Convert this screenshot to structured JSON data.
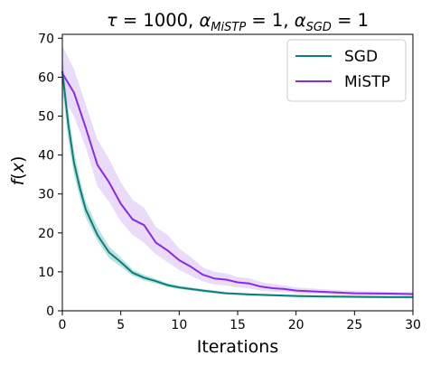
{
  "chart_data": {
    "type": "line",
    "title_parts": [
      {
        "t": "τ",
        "it": true
      },
      {
        "t": " = 1000, "
      },
      {
        "t": "α",
        "it": true
      },
      {
        "t": "MiSTP",
        "it": true,
        "sub": true
      },
      {
        "t": " = 1, "
      },
      {
        "t": "α",
        "it": true
      },
      {
        "t": "SGD",
        "it": true,
        "sub": true
      },
      {
        "t": " = 1"
      }
    ],
    "xlabel": "Iterations",
    "ylabel": "f(x)",
    "xlim": [
      0,
      30
    ],
    "ylim": [
      0,
      71
    ],
    "xticks": [
      0,
      5,
      10,
      15,
      20,
      25,
      30
    ],
    "yticks": [
      0,
      10,
      20,
      30,
      40,
      50,
      60,
      70
    ],
    "grid": false,
    "legend_position": "top-right",
    "series": [
      {
        "name": "SGD",
        "color": "#0a7f7a",
        "band_color": "#7fcac6",
        "x": [
          0,
          0.5,
          1,
          1.5,
          2,
          3,
          4,
          5,
          6,
          7,
          8,
          9,
          10,
          12,
          14,
          16,
          18,
          20,
          22,
          25,
          28,
          30
        ],
        "y": [
          61.5,
          48,
          38,
          31.5,
          26,
          19.5,
          15,
          12.5,
          9.8,
          8.5,
          7.6,
          6.6,
          6.0,
          5.2,
          4.5,
          4.2,
          4.0,
          3.8,
          3.7,
          3.6,
          3.5,
          3.5
        ],
        "lower": [
          57,
          44,
          35,
          29,
          24,
          18,
          13.5,
          11.3,
          9.0,
          7.8,
          7.0,
          6.1,
          5.6,
          4.8,
          4.2,
          3.9,
          3.7,
          3.5,
          3.4,
          3.3,
          3.2,
          3.2
        ],
        "upper": [
          66,
          52,
          41,
          34,
          28,
          21.5,
          16.5,
          13.7,
          10.6,
          9.2,
          8.2,
          7.1,
          6.4,
          5.6,
          4.8,
          4.5,
          4.3,
          4.1,
          4.0,
          3.9,
          3.8,
          3.8
        ]
      },
      {
        "name": "MiSTP",
        "color": "#8a2be2",
        "band_color": "#d8bdf3",
        "x": [
          0,
          1,
          2,
          3,
          4,
          5,
          6,
          7,
          8,
          9,
          10,
          11,
          12,
          13,
          14,
          15,
          16,
          17,
          18,
          19,
          20,
          22,
          25,
          28,
          30
        ],
        "y": [
          61,
          56,
          47,
          37.5,
          33,
          27.5,
          23.5,
          22,
          17.5,
          15.5,
          13,
          11.3,
          9.3,
          8.3,
          8.0,
          7.3,
          7.0,
          6.2,
          5.8,
          5.6,
          5.2,
          4.9,
          4.5,
          4.4,
          4.3
        ],
        "lower": [
          55,
          50,
          42,
          32,
          28,
          23,
          19.5,
          17.5,
          14.5,
          12.5,
          10.5,
          9.0,
          7.6,
          6.8,
          6.5,
          6.0,
          5.7,
          5.2,
          4.9,
          4.8,
          4.5,
          4.3,
          4.0,
          3.9,
          3.9
        ],
        "upper": [
          68,
          62,
          53,
          44,
          39,
          33,
          28.5,
          26.5,
          21.5,
          19.5,
          16,
          13.8,
          11.2,
          10,
          9.6,
          8.7,
          8.3,
          7.4,
          6.9,
          6.5,
          6.0,
          5.6,
          5.1,
          4.9,
          4.8
        ]
      }
    ]
  }
}
